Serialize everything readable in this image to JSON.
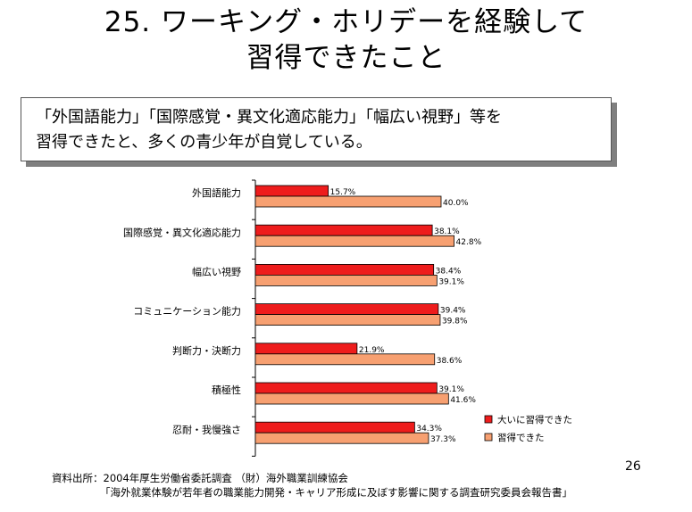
{
  "slide": {
    "title_line1": "25. ワーキング・ホリデーを経験して",
    "title_line2": "習得できたこと",
    "callout_line1": "「外国語能力」「国際感覚・異文化適応能力」「幅広い視野」等を",
    "callout_line2": "習得できたと、多くの青少年が自覚している。",
    "source": "資料出所：2004年厚生労働省委託調査 （財）海外職業訓練協会",
    "report": "「海外就業体験が若年者の職業能力開発・キャリア形成に及ぼす影響に関する調査研究委員会報告書」",
    "page_number": "26"
  },
  "chart_data": {
    "type": "bar",
    "orientation": "horizontal",
    "categories": [
      "外国語能力",
      "国際感覚・異文化適応能力",
      "幅広い視野",
      "コミュニケーション能力",
      "判断力・決断力",
      "積極性",
      "忍耐・我慢強さ"
    ],
    "series": [
      {
        "name": "大いに習得できた",
        "color": "#ee1c1c",
        "values": [
          15.7,
          38.1,
          38.4,
          39.4,
          21.9,
          39.1,
          34.3
        ]
      },
      {
        "name": "習得できた",
        "color": "#f7a071",
        "values": [
          40.0,
          42.8,
          39.1,
          39.8,
          38.6,
          41.6,
          37.3
        ]
      }
    ],
    "value_format": "%",
    "xlim": [
      0,
      100
    ],
    "legend_position": "bottom-right",
    "grid": false
  }
}
